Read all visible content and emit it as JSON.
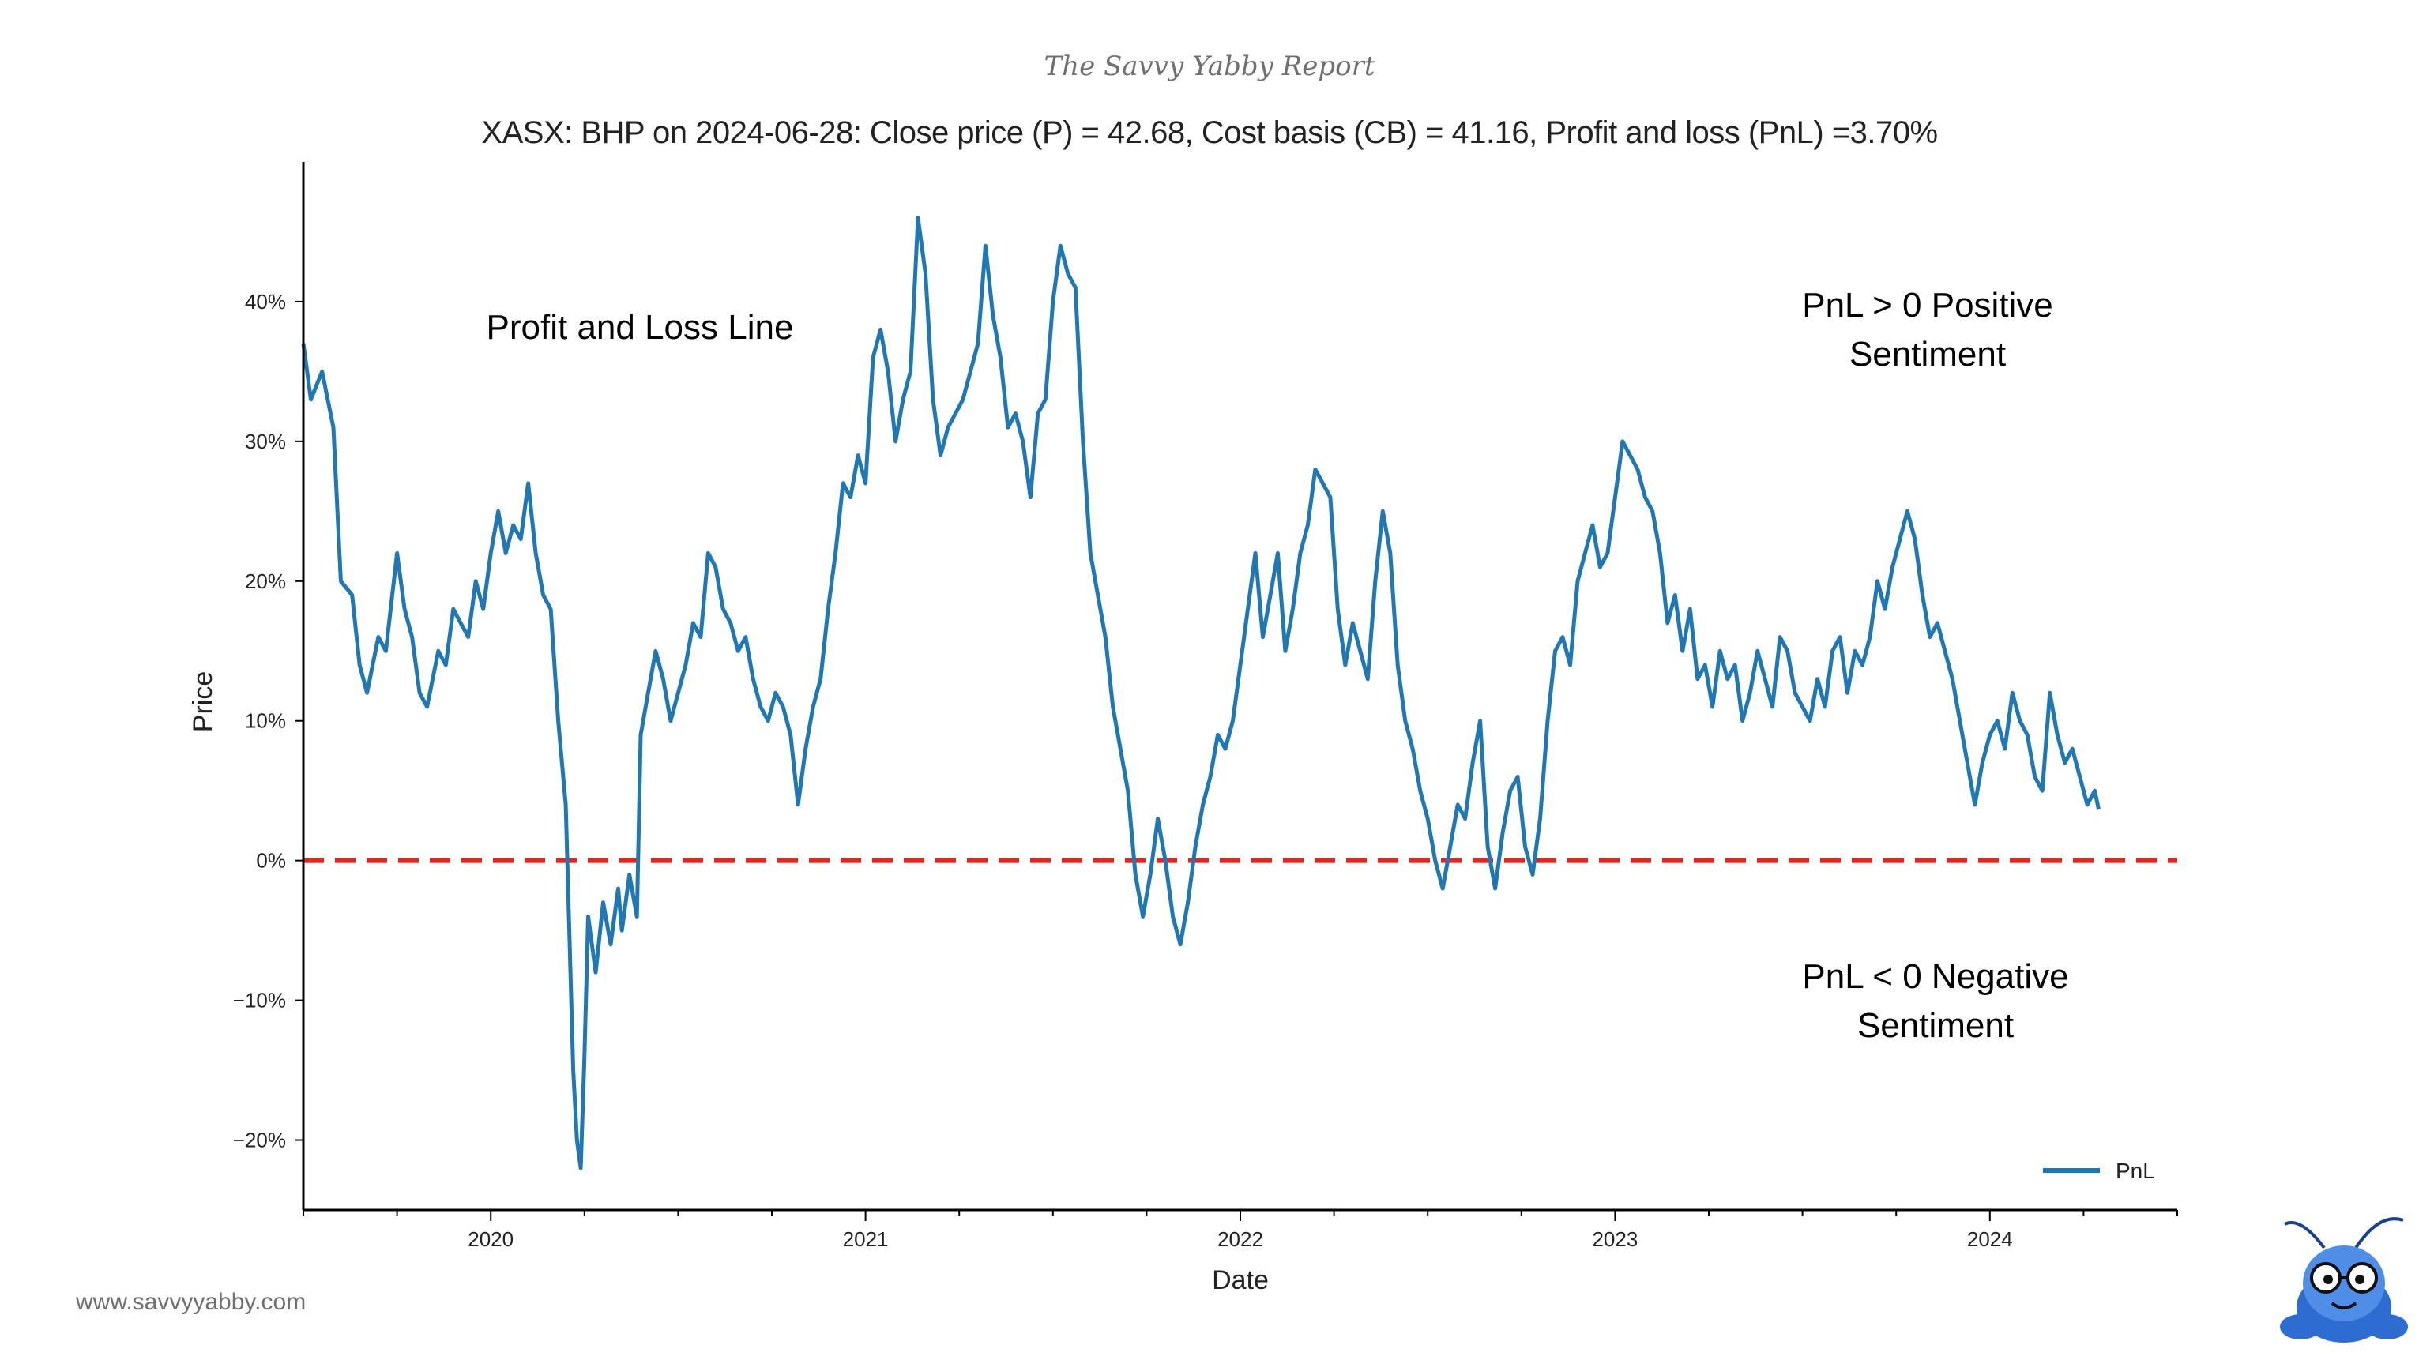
{
  "header": {
    "brand": "The Savvy Yabby Report",
    "title": "XASX: BHP on 2024-06-28: Close price (P) = 42.68, Cost basis (CB) = 41.16, Profit and loss (PnL) =3.70%"
  },
  "annotations": {
    "line_label": "Profit and Loss Line",
    "positive_line1": "PnL > 0 Positive",
    "positive_line2": "Sentiment",
    "negative_line1": "PnL < 0 Negative",
    "negative_line2": "Sentiment"
  },
  "footer": {
    "website": "www.savvyyabby.com"
  },
  "colors": {
    "series": "#1f77b4",
    "zero_line": "#e8231c",
    "axis": "#000000"
  },
  "chart_data": {
    "type": "line",
    "title": "XASX: BHP on 2024-06-28: Close price (P) = 42.68, Cost basis (CB) = 41.16, Profit and loss (PnL) =3.70%",
    "xlabel": "Date",
    "ylabel": "Price",
    "xlim": [
      2019.5,
      2024.5
    ],
    "ylim": [
      -25,
      50
    ],
    "x_ticks": [
      2020,
      2021,
      2022,
      2023,
      2024
    ],
    "x_tick_labels": [
      "2020",
      "2021",
      "2022",
      "2023",
      "2024"
    ],
    "y_ticks": [
      -20,
      -10,
      0,
      10,
      20,
      30,
      40
    ],
    "y_tick_labels": [
      "−20%",
      "−10%",
      "0%",
      "10%",
      "20%",
      "30%",
      "40%"
    ],
    "legend": {
      "position": "bottom-right",
      "entries": [
        "PnL"
      ]
    },
    "reference_line": {
      "y": 0,
      "style": "dashed",
      "color": "#e8231c"
    },
    "series": [
      {
        "name": "PnL",
        "color": "#1f77b4",
        "points": [
          [
            2019.5,
            37
          ],
          [
            2019.52,
            33
          ],
          [
            2019.55,
            35
          ],
          [
            2019.58,
            31
          ],
          [
            2019.6,
            20
          ],
          [
            2019.63,
            19
          ],
          [
            2019.65,
            14
          ],
          [
            2019.67,
            12
          ],
          [
            2019.7,
            16
          ],
          [
            2019.72,
            15
          ],
          [
            2019.75,
            22
          ],
          [
            2019.77,
            18
          ],
          [
            2019.79,
            16
          ],
          [
            2019.81,
            12
          ],
          [
            2019.83,
            11
          ],
          [
            2019.86,
            15
          ],
          [
            2019.88,
            14
          ],
          [
            2019.9,
            18
          ],
          [
            2019.92,
            17
          ],
          [
            2019.94,
            16
          ],
          [
            2019.96,
            20
          ],
          [
            2019.98,
            18
          ],
          [
            2020.0,
            22
          ],
          [
            2020.02,
            25
          ],
          [
            2020.04,
            22
          ],
          [
            2020.06,
            24
          ],
          [
            2020.08,
            23
          ],
          [
            2020.1,
            27
          ],
          [
            2020.12,
            22
          ],
          [
            2020.14,
            19
          ],
          [
            2020.16,
            18
          ],
          [
            2020.18,
            10
          ],
          [
            2020.2,
            4
          ],
          [
            2020.22,
            -15
          ],
          [
            2020.23,
            -20
          ],
          [
            2020.24,
            -22
          ],
          [
            2020.25,
            -14
          ],
          [
            2020.26,
            -4
          ],
          [
            2020.28,
            -8
          ],
          [
            2020.3,
            -3
          ],
          [
            2020.32,
            -6
          ],
          [
            2020.34,
            -2
          ],
          [
            2020.35,
            -5
          ],
          [
            2020.37,
            -1
          ],
          [
            2020.39,
            -4
          ],
          [
            2020.4,
            9
          ],
          [
            2020.42,
            12
          ],
          [
            2020.44,
            15
          ],
          [
            2020.46,
            13
          ],
          [
            2020.48,
            10
          ],
          [
            2020.5,
            12
          ],
          [
            2020.52,
            14
          ],
          [
            2020.54,
            17
          ],
          [
            2020.56,
            16
          ],
          [
            2020.58,
            22
          ],
          [
            2020.6,
            21
          ],
          [
            2020.62,
            18
          ],
          [
            2020.64,
            17
          ],
          [
            2020.66,
            15
          ],
          [
            2020.68,
            16
          ],
          [
            2020.7,
            13
          ],
          [
            2020.72,
            11
          ],
          [
            2020.74,
            10
          ],
          [
            2020.76,
            12
          ],
          [
            2020.78,
            11
          ],
          [
            2020.8,
            9
          ],
          [
            2020.82,
            4
          ],
          [
            2020.84,
            8
          ],
          [
            2020.86,
            11
          ],
          [
            2020.88,
            13
          ],
          [
            2020.9,
            18
          ],
          [
            2020.92,
            22
          ],
          [
            2020.94,
            27
          ],
          [
            2020.96,
            26
          ],
          [
            2020.98,
            29
          ],
          [
            2021.0,
            27
          ],
          [
            2021.02,
            36
          ],
          [
            2021.04,
            38
          ],
          [
            2021.06,
            35
          ],
          [
            2021.08,
            30
          ],
          [
            2021.1,
            33
          ],
          [
            2021.12,
            35
          ],
          [
            2021.14,
            46
          ],
          [
            2021.16,
            42
          ],
          [
            2021.18,
            33
          ],
          [
            2021.2,
            29
          ],
          [
            2021.22,
            31
          ],
          [
            2021.24,
            32
          ],
          [
            2021.26,
            33
          ],
          [
            2021.28,
            35
          ],
          [
            2021.3,
            37
          ],
          [
            2021.32,
            44
          ],
          [
            2021.34,
            39
          ],
          [
            2021.36,
            36
          ],
          [
            2021.38,
            31
          ],
          [
            2021.4,
            32
          ],
          [
            2021.42,
            30
          ],
          [
            2021.44,
            26
          ],
          [
            2021.46,
            32
          ],
          [
            2021.48,
            33
          ],
          [
            2021.5,
            40
          ],
          [
            2021.52,
            44
          ],
          [
            2021.54,
            42
          ],
          [
            2021.56,
            41
          ],
          [
            2021.58,
            30
          ],
          [
            2021.6,
            22
          ],
          [
            2021.62,
            19
          ],
          [
            2021.64,
            16
          ],
          [
            2021.66,
            11
          ],
          [
            2021.68,
            8
          ],
          [
            2021.7,
            5
          ],
          [
            2021.72,
            -1
          ],
          [
            2021.74,
            -4
          ],
          [
            2021.76,
            -1
          ],
          [
            2021.78,
            3
          ],
          [
            2021.8,
            0
          ],
          [
            2021.82,
            -4
          ],
          [
            2021.84,
            -6
          ],
          [
            2021.86,
            -3
          ],
          [
            2021.88,
            1
          ],
          [
            2021.9,
            4
          ],
          [
            2021.92,
            6
          ],
          [
            2021.94,
            9
          ],
          [
            2021.96,
            8
          ],
          [
            2021.98,
            10
          ],
          [
            2022.0,
            14
          ],
          [
            2022.02,
            18
          ],
          [
            2022.04,
            22
          ],
          [
            2022.06,
            16
          ],
          [
            2022.08,
            19
          ],
          [
            2022.1,
            22
          ],
          [
            2022.12,
            15
          ],
          [
            2022.14,
            18
          ],
          [
            2022.16,
            22
          ],
          [
            2022.18,
            24
          ],
          [
            2022.2,
            28
          ],
          [
            2022.22,
            27
          ],
          [
            2022.24,
            26
          ],
          [
            2022.26,
            18
          ],
          [
            2022.28,
            14
          ],
          [
            2022.3,
            17
          ],
          [
            2022.32,
            15
          ],
          [
            2022.34,
            13
          ],
          [
            2022.36,
            20
          ],
          [
            2022.38,
            25
          ],
          [
            2022.4,
            22
          ],
          [
            2022.42,
            14
          ],
          [
            2022.44,
            10
          ],
          [
            2022.46,
            8
          ],
          [
            2022.48,
            5
          ],
          [
            2022.5,
            3
          ],
          [
            2022.52,
            0
          ],
          [
            2022.54,
            -2
          ],
          [
            2022.56,
            1
          ],
          [
            2022.58,
            4
          ],
          [
            2022.6,
            3
          ],
          [
            2022.62,
            7
          ],
          [
            2022.64,
            10
          ],
          [
            2022.66,
            1
          ],
          [
            2022.68,
            -2
          ],
          [
            2022.7,
            2
          ],
          [
            2022.72,
            5
          ],
          [
            2022.74,
            6
          ],
          [
            2022.76,
            1
          ],
          [
            2022.78,
            -1
          ],
          [
            2022.8,
            3
          ],
          [
            2022.82,
            10
          ],
          [
            2022.84,
            15
          ],
          [
            2022.86,
            16
          ],
          [
            2022.88,
            14
          ],
          [
            2022.9,
            20
          ],
          [
            2022.92,
            22
          ],
          [
            2022.94,
            24
          ],
          [
            2022.96,
            21
          ],
          [
            2022.98,
            22
          ],
          [
            2023.0,
            26
          ],
          [
            2023.02,
            30
          ],
          [
            2023.04,
            29
          ],
          [
            2023.06,
            28
          ],
          [
            2023.08,
            26
          ],
          [
            2023.1,
            25
          ],
          [
            2023.12,
            22
          ],
          [
            2023.14,
            17
          ],
          [
            2023.16,
            19
          ],
          [
            2023.18,
            15
          ],
          [
            2023.2,
            18
          ],
          [
            2023.22,
            13
          ],
          [
            2023.24,
            14
          ],
          [
            2023.26,
            11
          ],
          [
            2023.28,
            15
          ],
          [
            2023.3,
            13
          ],
          [
            2023.32,
            14
          ],
          [
            2023.34,
            10
          ],
          [
            2023.36,
            12
          ],
          [
            2023.38,
            15
          ],
          [
            2023.4,
            13
          ],
          [
            2023.42,
            11
          ],
          [
            2023.44,
            16
          ],
          [
            2023.46,
            15
          ],
          [
            2023.48,
            12
          ],
          [
            2023.5,
            11
          ],
          [
            2023.52,
            10
          ],
          [
            2023.54,
            13
          ],
          [
            2023.56,
            11
          ],
          [
            2023.58,
            15
          ],
          [
            2023.6,
            16
          ],
          [
            2023.62,
            12
          ],
          [
            2023.64,
            15
          ],
          [
            2023.66,
            14
          ],
          [
            2023.68,
            16
          ],
          [
            2023.7,
            20
          ],
          [
            2023.72,
            18
          ],
          [
            2023.74,
            21
          ],
          [
            2023.76,
            23
          ],
          [
            2023.78,
            25
          ],
          [
            2023.8,
            23
          ],
          [
            2023.82,
            19
          ],
          [
            2023.84,
            16
          ],
          [
            2023.86,
            17
          ],
          [
            2023.88,
            15
          ],
          [
            2023.9,
            13
          ],
          [
            2023.92,
            10
          ],
          [
            2023.94,
            7
          ],
          [
            2023.96,
            4
          ],
          [
            2023.98,
            7
          ],
          [
            2024.0,
            9
          ],
          [
            2024.02,
            10
          ],
          [
            2024.04,
            8
          ],
          [
            2024.06,
            12
          ],
          [
            2024.08,
            10
          ],
          [
            2024.1,
            9
          ],
          [
            2024.12,
            6
          ],
          [
            2024.14,
            5
          ],
          [
            2024.16,
            12
          ],
          [
            2024.18,
            9
          ],
          [
            2024.2,
            7
          ],
          [
            2024.22,
            8
          ],
          [
            2024.24,
            6
          ],
          [
            2024.26,
            4
          ],
          [
            2024.28,
            5
          ],
          [
            2024.29,
            3.7
          ]
        ]
      }
    ]
  }
}
